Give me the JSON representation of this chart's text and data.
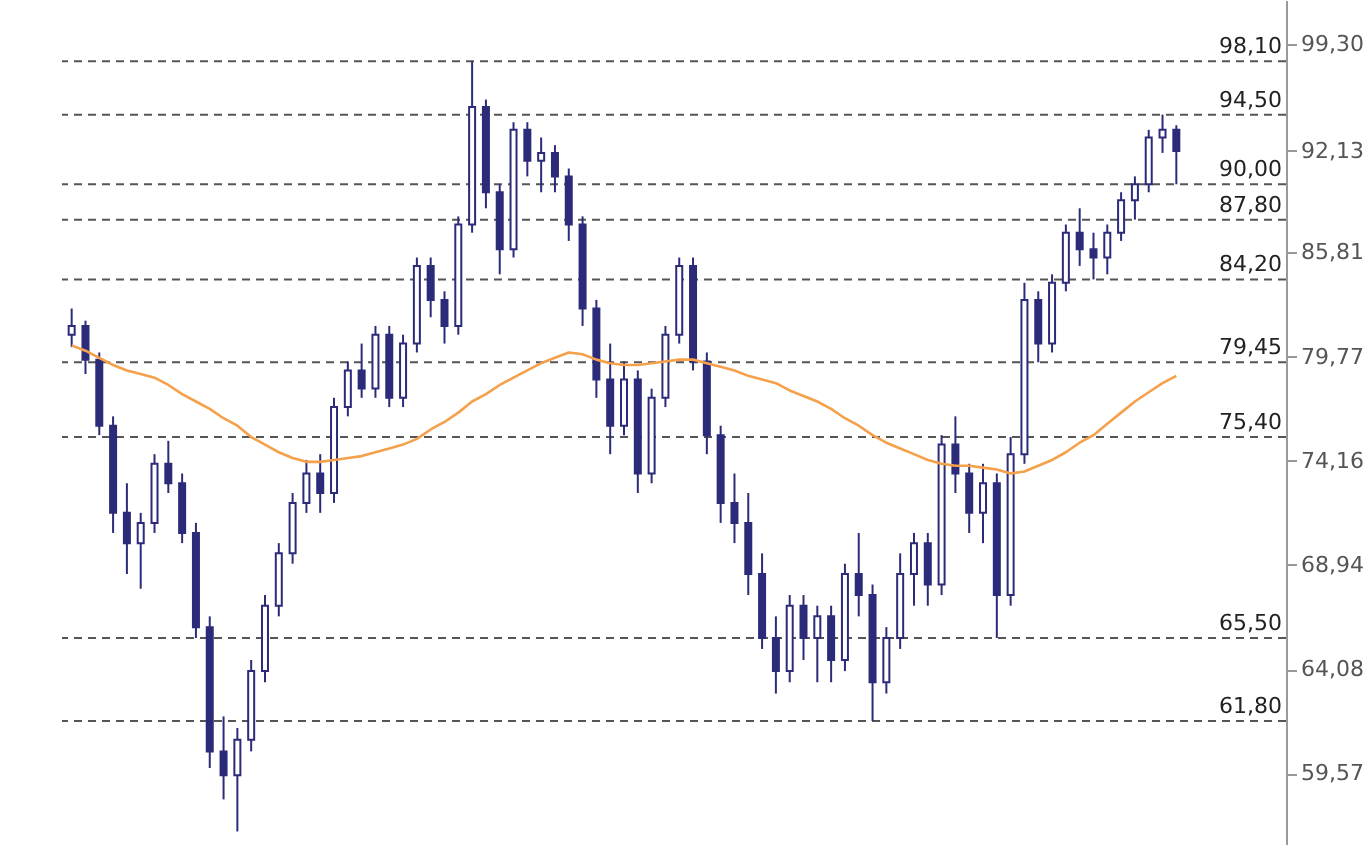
{
  "chart_data": {
    "type": "candlestick",
    "log": "y",
    "tick_labels": "y",
    "grid": false,
    "legend": false,
    "categories": [
      null,
      null,
      null,
      null,
      null,
      null,
      null,
      null,
      null,
      null,
      null,
      null,
      null,
      null,
      null,
      null,
      null,
      null,
      null,
      null,
      null,
      null,
      null,
      null,
      null,
      null,
      null,
      null,
      null,
      null,
      null,
      null,
      null,
      null,
      null,
      null,
      null,
      null,
      null,
      null,
      null,
      null,
      null,
      null,
      null,
      null,
      null,
      null,
      null,
      null,
      null,
      null,
      null,
      null,
      null,
      null,
      null,
      null,
      null,
      null,
      null,
      null,
      null,
      null,
      null,
      null,
      null,
      null,
      null,
      null,
      null,
      null,
      null,
      null,
      null,
      null,
      null,
      null,
      null,
      null,
      null
    ],
    "ylim": [
      56.7,
      102.4
    ],
    "yticks": [
      {
        "value": 59.57,
        "label": "59,57"
      },
      {
        "value": 64.08,
        "label": "64,08"
      },
      {
        "value": 68.94,
        "label": "68,94"
      },
      {
        "value": 74.16,
        "label": "74,16"
      },
      {
        "value": 79.77,
        "label": "79,77"
      },
      {
        "value": 85.81,
        "label": "85,81"
      },
      {
        "value": 92.13,
        "label": "92,13"
      },
      {
        "value": 99.3,
        "label": "99,30"
      }
    ],
    "ref_lines": [
      {
        "axis": "y",
        "value": 98.1,
        "label": "98,10",
        "color": "#555555",
        "line_style": "dashed"
      },
      {
        "axis": "y",
        "value": 94.5,
        "label": "94,50",
        "color": "#555555",
        "line_style": "dashed"
      },
      {
        "axis": "y",
        "value": 90.0,
        "label": "90,00",
        "color": "#555555",
        "line_style": "dashed"
      },
      {
        "axis": "y",
        "value": 87.8,
        "label": "87,80",
        "color": "#555555",
        "line_style": "dashed"
      },
      {
        "axis": "y",
        "value": 84.2,
        "label": "84,20",
        "color": "#555555",
        "line_style": "dashed"
      },
      {
        "axis": "y",
        "value": 79.45,
        "label": "79,45",
        "color": "#555555",
        "line_style": "dashed"
      },
      {
        "axis": "y",
        "value": 75.4,
        "label": "75,40",
        "color": "#555555",
        "line_style": "dashed"
      },
      {
        "axis": "y",
        "value": 65.5,
        "label": "65,50",
        "color": "#555555",
        "line_style": "dashed"
      },
      {
        "axis": "y",
        "value": 61.8,
        "label": "61,80",
        "color": "#555555",
        "line_style": "dashed"
      }
    ],
    "series": [
      {
        "color": "#2b2b7a",
        "ohlc": [
          [
            81.0,
            82.5,
            80.3,
            81.5
          ],
          [
            81.5,
            81.8,
            78.8,
            79.6
          ],
          [
            79.6,
            80.0,
            75.5,
            76.0
          ],
          [
            76.0,
            76.5,
            70.5,
            71.5
          ],
          [
            71.5,
            73.0,
            68.5,
            70.0
          ],
          [
            70.0,
            71.5,
            67.8,
            71.0
          ],
          [
            71.0,
            74.5,
            70.5,
            74.0
          ],
          [
            74.0,
            75.2,
            72.5,
            73.0
          ],
          [
            73.0,
            73.5,
            70.0,
            70.5
          ],
          [
            70.5,
            71.0,
            65.5,
            66.0
          ],
          [
            66.0,
            66.5,
            59.8,
            60.5
          ],
          [
            60.5,
            62.0,
            58.5,
            59.5
          ],
          [
            59.5,
            61.5,
            57.2,
            61.0
          ],
          [
            61.0,
            64.5,
            60.5,
            64.0
          ],
          [
            64.0,
            67.5,
            63.5,
            67.0
          ],
          [
            67.0,
            70.0,
            66.5,
            69.5
          ],
          [
            69.5,
            72.5,
            69.0,
            72.0
          ],
          [
            72.0,
            74.2,
            71.5,
            73.5
          ],
          [
            73.5,
            74.5,
            71.5,
            72.5
          ],
          [
            72.5,
            77.5,
            72.0,
            77.0
          ],
          [
            77.0,
            79.5,
            76.5,
            79.0
          ],
          [
            79.0,
            80.5,
            77.5,
            78.0
          ],
          [
            78.0,
            81.5,
            77.5,
            81.0
          ],
          [
            81.0,
            81.5,
            77.0,
            77.5
          ],
          [
            77.5,
            81.0,
            77.0,
            80.5
          ],
          [
            80.5,
            85.5,
            80.0,
            85.0
          ],
          [
            85.0,
            85.5,
            82.0,
            83.0
          ],
          [
            83.0,
            83.5,
            80.5,
            81.5
          ],
          [
            81.5,
            88.0,
            81.0,
            87.5
          ],
          [
            87.5,
            98.1,
            87.0,
            95.0
          ],
          [
            95.0,
            95.5,
            88.5,
            89.5
          ],
          [
            89.5,
            90.0,
            84.5,
            86.0
          ],
          [
            86.0,
            94.0,
            85.5,
            93.5
          ],
          [
            93.5,
            94.0,
            90.5,
            91.5
          ],
          [
            91.5,
            93.0,
            89.5,
            92.0
          ],
          [
            92.0,
            92.5,
            89.5,
            90.5
          ],
          [
            90.5,
            91.0,
            86.5,
            87.5
          ],
          [
            87.5,
            88.0,
            81.5,
            82.5
          ],
          [
            82.5,
            83.0,
            77.5,
            78.5
          ],
          [
            78.5,
            80.5,
            74.5,
            76.0
          ],
          [
            76.0,
            79.5,
            75.5,
            78.5
          ],
          [
            78.5,
            79.0,
            72.5,
            73.5
          ],
          [
            73.5,
            78.0,
            73.0,
            77.5
          ],
          [
            77.5,
            81.5,
            77.0,
            81.0
          ],
          [
            81.0,
            85.5,
            80.5,
            85.0
          ],
          [
            85.0,
            85.5,
            79.0,
            79.5
          ],
          [
            79.5,
            80.0,
            74.5,
            75.5
          ],
          [
            75.5,
            76.0,
            71.0,
            72.0
          ],
          [
            72.0,
            73.5,
            70.0,
            71.0
          ],
          [
            71.0,
            72.5,
            67.5,
            68.5
          ],
          [
            68.5,
            69.5,
            65.0,
            65.5
          ],
          [
            65.5,
            66.5,
            63.0,
            64.0
          ],
          [
            64.0,
            67.5,
            63.5,
            67.0
          ],
          [
            67.0,
            67.5,
            64.5,
            65.5
          ],
          [
            65.5,
            67.0,
            63.5,
            66.5
          ],
          [
            66.5,
            67.0,
            63.5,
            64.5
          ],
          [
            64.5,
            69.0,
            64.0,
            68.5
          ],
          [
            68.5,
            70.5,
            66.5,
            67.5
          ],
          [
            67.5,
            68.0,
            61.8,
            63.5
          ],
          [
            63.5,
            66.0,
            63.0,
            65.5
          ],
          [
            65.5,
            69.5,
            65.0,
            68.5
          ],
          [
            68.5,
            70.5,
            67.0,
            70.0
          ],
          [
            70.0,
            70.5,
            67.0,
            68.0
          ],
          [
            68.0,
            75.5,
            67.5,
            75.0
          ],
          [
            75.0,
            76.5,
            72.5,
            73.5
          ],
          [
            73.5,
            74.0,
            70.5,
            71.5
          ],
          [
            71.5,
            74.0,
            70.0,
            73.0
          ],
          [
            73.0,
            73.5,
            65.5,
            67.5
          ],
          [
            67.5,
            75.4,
            67.0,
            74.5
          ],
          [
            74.5,
            84.0,
            74.0,
            83.0
          ],
          [
            83.0,
            83.5,
            79.45,
            80.5
          ],
          [
            80.5,
            84.5,
            80.0,
            84.0
          ],
          [
            84.0,
            87.5,
            83.5,
            87.0
          ],
          [
            87.0,
            88.5,
            85.0,
            86.0
          ],
          [
            86.0,
            87.0,
            84.2,
            85.5
          ],
          [
            85.5,
            87.5,
            84.5,
            87.0
          ],
          [
            87.0,
            89.5,
            86.5,
            89.0
          ],
          [
            89.0,
            90.5,
            87.8,
            90.0
          ],
          [
            90.0,
            93.5,
            89.5,
            93.0
          ],
          [
            93.0,
            94.5,
            92.0,
            93.5
          ],
          [
            93.5,
            93.8,
            90.0,
            92.13
          ]
        ]
      },
      {
        "type": "line",
        "color": "#f5a04a",
        "values": [
          80.4,
          80.1,
          79.7,
          79.3,
          79.0,
          78.8,
          78.6,
          78.2,
          77.7,
          77.3,
          76.9,
          76.4,
          76.0,
          75.4,
          75.0,
          74.6,
          74.3,
          74.1,
          74.1,
          74.2,
          74.3,
          74.4,
          74.6,
          74.8,
          75.0,
          75.3,
          75.8,
          76.2,
          76.7,
          77.3,
          77.7,
          78.2,
          78.6,
          79.0,
          79.4,
          79.7,
          80.0,
          79.9,
          79.6,
          79.4,
          79.3,
          79.3,
          79.4,
          79.5,
          79.6,
          79.6,
          79.4,
          79.2,
          79.0,
          78.7,
          78.5,
          78.3,
          77.9,
          77.6,
          77.3,
          76.9,
          76.4,
          76.0,
          75.5,
          75.1,
          74.8,
          74.5,
          74.2,
          74.0,
          73.9,
          73.9,
          73.8,
          73.7,
          73.5,
          73.6,
          73.9,
          74.2,
          74.6,
          75.1,
          75.5,
          76.1,
          76.7,
          77.3,
          77.8,
          78.3,
          78.7
        ]
      }
    ]
  }
}
